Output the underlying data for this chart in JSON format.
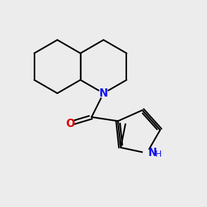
{
  "bg_color": "#ececec",
  "bond_color": "#000000",
  "N_color": "#1010ee",
  "O_color": "#dd0000",
  "lw": 1.6,
  "figsize": [
    3.0,
    3.0
  ],
  "dpi": 100,
  "xlim": [
    0,
    10
  ],
  "ylim": [
    0,
    10
  ]
}
